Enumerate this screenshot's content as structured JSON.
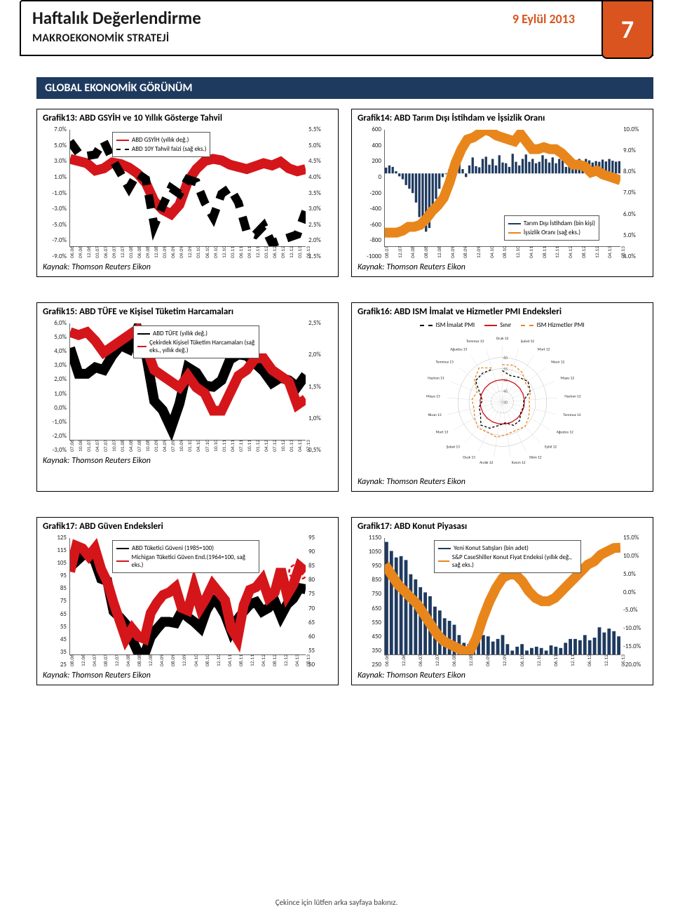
{
  "header": {
    "title": "Haftalık Değerlendirme",
    "subtitle": "MAKROEKONOMİK STRATEJİ",
    "date": "9 Eylül 2013",
    "page_number": "7"
  },
  "section_band": "GLOBAL EKONOMİK GÖRÜNÜM",
  "source_label": "Kaynak: Thomson Reuters Eikon",
  "footer": "Çekince için lütfen arka sayfaya bakınız.",
  "colors": {
    "accent": "#d9541e",
    "band": "#1f3a5f",
    "red": "#d4161a",
    "black": "#000000",
    "grid": "#666666",
    "orange_line": "#e8861b"
  },
  "chart13": {
    "title": "Grafik13: ABD GSYİH ve 10 Yıllık Gösterge Tahvil",
    "left_ticks": [
      "7.0%",
      "5.0%",
      "3.0%",
      "1.0%",
      "-1.0%",
      "-3.0%",
      "-5.0%",
      "-7.0%",
      "-9.0%"
    ],
    "right_ticks": [
      "5.5%",
      "5.0%",
      "4.5%",
      "4.0%",
      "3.5%",
      "3.0%",
      "2.5%",
      "2.0%",
      "1.5%"
    ],
    "x_ticks": [
      "06.06",
      "09.06",
      "12.06",
      "03.07",
      "06.07",
      "09.07",
      "12.07",
      "03.08",
      "06.08",
      "09.08",
      "12.08",
      "03.09",
      "06.09",
      "09.09",
      "12.09",
      "03.10",
      "06.10",
      "09.10",
      "12.10",
      "03.11",
      "06.11",
      "09.11",
      "12.11",
      "03.12",
      "06.12",
      "09.12",
      "12.12",
      "03.13",
      "06.13"
    ],
    "legend": [
      {
        "label": "ABD GSYİH (yıllık değ.)",
        "color": "#d4161a",
        "style": "solid"
      },
      {
        "label": "ABD 10Y Tahvil faizi (sağ eks.)",
        "color": "#000000",
        "style": "dashed"
      }
    ],
    "gdp_series": [
      3.0,
      2.7,
      2.4,
      1.4,
      1.7,
      2.5,
      2.3,
      1.8,
      1.0,
      -0.3,
      -2.8,
      -4.0,
      -4.6,
      -3.3,
      -0.1,
      1.6,
      2.7,
      3.0,
      2.8,
      2.2,
      1.9,
      1.6,
      2.0,
      2.4,
      2.1,
      2.6,
      1.7,
      1.3,
      1.6
    ],
    "gdp_domain": [
      -9,
      7
    ],
    "yield_series": [
      5.1,
      4.7,
      4.6,
      4.65,
      5.1,
      4.5,
      4.0,
      3.5,
      4.0,
      3.8,
      2.2,
      2.9,
      3.5,
      3.3,
      3.8,
      3.7,
      3.0,
      2.5,
      3.3,
      3.5,
      3.0,
      2.0,
      1.9,
      2.2,
      1.6,
      1.7,
      1.8,
      1.9,
      2.7
    ],
    "yield_domain": [
      1.5,
      5.5
    ]
  },
  "chart14": {
    "title": "Grafik14: ABD Tarım Dışı İstihdam ve İşsizlik Oranı",
    "left_ticks": [
      "600",
      "400",
      "200",
      "0",
      "-200",
      "-400",
      "-600",
      "-800",
      "-1000"
    ],
    "right_ticks": [
      "10.0%",
      "9.0%",
      "8.0%",
      "7.0%",
      "6.0%",
      "5.0%",
      "4.0%"
    ],
    "x_ticks": [
      "08.07",
      "12.07",
      "04.08",
      "08.08",
      "12.08",
      "04.09",
      "08.09",
      "12.09",
      "04.10",
      "08.10",
      "12.10",
      "04.11",
      "08.11",
      "12.11",
      "04.12",
      "08.12",
      "12.12",
      "04.13",
      "08.13"
    ],
    "legend": [
      {
        "label": "Tarım Dışı İstihdam (bin kişi)",
        "color": "#1f3a5f",
        "style": "solid"
      },
      {
        "label": "İşsizlik Oranı (sağ eks.)",
        "color": "#e8861b",
        "style": "solid"
      }
    ],
    "bars": [
      80,
      110,
      90,
      30,
      -40,
      -80,
      -160,
      -210,
      -270,
      -400,
      -600,
      -720,
      -800,
      -750,
      -600,
      -350,
      -210,
      -50,
      -10,
      60,
      150,
      220,
      290,
      60,
      -50,
      110,
      220,
      100,
      85,
      200,
      230,
      120,
      200,
      110,
      250,
      150,
      140,
      90,
      270,
      160,
      110,
      200,
      260,
      160,
      200,
      140,
      160,
      250,
      200,
      150,
      220,
      140,
      200,
      180,
      90,
      200,
      150,
      160,
      200,
      140,
      200,
      180,
      150,
      170,
      160,
      190,
      165,
      199,
      175,
      162,
      169
    ],
    "bars_domain": [
      -1000,
      600
    ],
    "unemp": [
      4.7,
      4.7,
      4.7,
      4.8,
      5.0,
      5.0,
      5.1,
      5.4,
      5.8,
      6.1,
      6.5,
      7.3,
      8.3,
      9.0,
      9.5,
      9.6,
      9.8,
      10.0,
      9.9,
      9.7,
      9.6,
      9.5,
      9.4,
      9.8,
      9.4,
      9.0,
      9.0,
      9.1,
      9.0,
      9.0,
      8.8,
      8.5,
      8.2,
      8.2,
      8.1,
      7.8,
      7.9,
      7.7,
      7.6,
      7.5,
      7.4
    ],
    "unemp_domain": [
      4.0,
      10.0
    ]
  },
  "chart15": {
    "title": "Grafik15: ABD TÜFE ve Kişisel Tüketim Harcamaları",
    "left_ticks": [
      "6,0%",
      "5,0%",
      "4,0%",
      "3,0%",
      "2,0%",
      "1,0%",
      "0,0%",
      "-1,0%",
      "-2,0%",
      "-3,0%"
    ],
    "right_ticks": [
      "2,5%",
      "2,0%",
      "1,5%",
      "1,0%",
      "0,5%"
    ],
    "x_ticks": [
      "07.06",
      "10.06",
      "01.07",
      "04.07",
      "07.07",
      "10.07",
      "01.08",
      "04.08",
      "07.08",
      "10.08",
      "01.09",
      "04.09",
      "07.09",
      "10.09",
      "01.10",
      "04.10",
      "07.10",
      "10.10",
      "01.11",
      "04.11",
      "07.11",
      "10.11",
      "01.12",
      "04.12",
      "07.12",
      "10.12",
      "01.13",
      "04.13",
      "07.13"
    ],
    "legend": [
      {
        "label": "ABD TÜFE (yıllık değ.)",
        "color": "#000000",
        "style": "solid"
      },
      {
        "label": "Çekirdek Kişisel Tüketim Harcamaları (sağ eks., yıllık değ.)",
        "color": "#d4161a",
        "style": "solid"
      }
    ],
    "cpi_series": [
      4.1,
      2.1,
      2.1,
      2.6,
      2.4,
      3.5,
      4.3,
      4.0,
      5.6,
      3.7,
      0.0,
      -0.7,
      -2.1,
      -0.2,
      2.6,
      2.2,
      1.2,
      1.1,
      1.6,
      3.2,
      3.6,
      3.5,
      2.9,
      2.3,
      1.4,
      1.8,
      1.6,
      1.1,
      2.0
    ],
    "cpi_domain": [
      -3,
      6
    ],
    "core_series": [
      2.35,
      2.3,
      2.35,
      2.2,
      2.0,
      2.1,
      2.2,
      2.3,
      2.4,
      2.1,
      1.7,
      1.6,
      1.5,
      1.4,
      1.6,
      1.4,
      1.3,
      1.0,
      1.0,
      1.3,
      1.6,
      1.7,
      1.9,
      1.9,
      1.7,
      1.6,
      1.5,
      1.1,
      1.2
    ],
    "core_domain": [
      0.5,
      2.5
    ]
  },
  "chart16": {
    "title": "Grafik16: ABD ISM İmalat ve Hizmetler PMI Endeksleri",
    "legend": [
      {
        "label": "ISM İmalat PMI",
        "color": "#000000",
        "style": "dashed"
      },
      {
        "label": "Sınır",
        "color": "#d4161a",
        "style": "solid"
      },
      {
        "label": "ISM Hizmetler PMI",
        "color": "#e8861b",
        "style": "dashed"
      }
    ],
    "months": [
      "Ocak 12",
      "Şubat 12",
      "Mart 12",
      "Nisan 12",
      "Mayıs 12",
      "Haziran 12",
      "Temmuz 12",
      "Ağustos 12",
      "Eylül 12",
      "Ekim 12",
      "Kasım 12",
      "Aralık 12",
      "Ocak 13",
      "Şubat 13",
      "Mart 13",
      "Nisan 13",
      "Mayıs 13",
      "Haziran 13",
      "Temmuz 13",
      "Ağustos 13",
      "Temmuz 13"
    ],
    "radial_ticks": [
      "60",
      "55",
      "50",
      "45",
      "40"
    ],
    "boundary": 50,
    "manufacturing": [
      54.1,
      52.4,
      53.4,
      54.8,
      53.5,
      49.7,
      49.8,
      49.6,
      51.5,
      51.7,
      49.5,
      50.7,
      53.1,
      54.2,
      51.3,
      50.7,
      49.0,
      50.9,
      55.4,
      55.7,
      55.4
    ],
    "services": [
      56.8,
      57.3,
      56.0,
      53.5,
      53.7,
      52.1,
      52.6,
      53.7,
      55.1,
      54.2,
      54.7,
      56.1,
      55.2,
      56.0,
      54.4,
      53.1,
      53.7,
      52.2,
      56.0,
      58.6,
      56.0
    ],
    "radial_domain": [
      40,
      65
    ]
  },
  "chart17": {
    "title": "Grafik17: ABD Güven Endeksleri",
    "left_ticks": [
      "125",
      "115",
      "105",
      "95",
      "85",
      "75",
      "65",
      "55",
      "45",
      "35",
      "25"
    ],
    "right_ticks": [
      "95",
      "90",
      "85",
      "80",
      "75",
      "70",
      "65",
      "60",
      "55",
      "50"
    ],
    "x_ticks": [
      "08.06",
      "12.06",
      "04.07",
      "08.07",
      "12.07",
      "04.08",
      "08.08",
      "12.08",
      "04.09",
      "08.09",
      "12.09",
      "04.10",
      "08.10",
      "12.10",
      "04.11",
      "08.11",
      "12.11",
      "04.12",
      "08.12",
      "12.12",
      "04.13",
      "08.13"
    ],
    "legend": [
      {
        "label": "ABD Tüketici Güveni  (1985=100)",
        "color": "#000000",
        "style": "solid"
      },
      {
        "label": "Michigan Tüketici Güven End.(1964=100, sağ eks.)",
        "color": "#d4161a",
        "style": "solid"
      }
    ],
    "conf_series": [
      100,
      105,
      110,
      111,
      105,
      90,
      88,
      62,
      57,
      51,
      38,
      26,
      25,
      40,
      47,
      53,
      53,
      52,
      62,
      57,
      53,
      48,
      63,
      72,
      68,
      59,
      45,
      55,
      62,
      68,
      70,
      62,
      65,
      71,
      58,
      68,
      73,
      82,
      81
    ],
    "conf_domain": [
      25,
      125
    ],
    "mich_series": [
      82,
      92,
      91,
      88,
      91,
      83,
      78,
      70,
      63,
      56,
      60,
      57,
      56,
      66,
      70,
      73,
      74,
      76,
      68,
      67,
      76,
      68,
      72,
      77,
      74,
      71,
      60,
      56,
      69,
      75,
      76,
      79,
      72,
      74,
      83,
      73,
      77,
      84,
      82
    ],
    "mich_domain": [
      50,
      95
    ]
  },
  "chart18": {
    "title": "Grafik17: ABD Konut Piyasası",
    "left_ticks": [
      "1150",
      "1050",
      "950",
      "850",
      "750",
      "650",
      "550",
      "450",
      "350",
      "250"
    ],
    "right_ticks": [
      "15.0%",
      "10.0%",
      "5.0%",
      "0.0%",
      "-5.0%",
      "-10.0%",
      "-15.0%",
      "-20.0%"
    ],
    "x_ticks": [
      "06.06",
      "12.06",
      "06.07",
      "12.07",
      "06.08",
      "12.08",
      "06.09",
      "12.09",
      "06.10",
      "12.10",
      "06.11",
      "12.11",
      "06.12",
      "12.12",
      "06.13"
    ],
    "legend": [
      {
        "label": "Yeni Konut Satışları (bin adet)",
        "color": "#1f3a5f",
        "style": "solid"
      },
      {
        "label": "S&P CaseShiller Konut Fiyat Endeksi (yıllık değ., sağ eks.)",
        "color": "#e8861b",
        "style": "solid"
      }
    ],
    "bars": [
      1120,
      1050,
      1000,
      1010,
      980,
      870,
      830,
      770,
      730,
      700,
      620,
      590,
      530,
      510,
      480,
      400,
      340,
      330,
      340,
      370,
      400,
      390,
      350,
      370,
      400,
      330,
      280,
      310,
      330,
      280,
      300,
      310,
      300,
      280,
      320,
      310,
      300,
      340,
      370,
      370,
      360,
      400,
      360,
      380,
      460,
      420,
      450,
      430,
      390
    ],
    "bars_domain": [
      250,
      1150
    ],
    "price_series": [
      7,
      4,
      1,
      -1,
      -3,
      -5,
      -8,
      -11,
      -14,
      -16,
      -17,
      -18,
      -19,
      -19,
      -15,
      -9,
      -4,
      0,
      3,
      4,
      4,
      2,
      -1,
      -3,
      -4,
      -4,
      -3,
      -1,
      1,
      3,
      5,
      7,
      8,
      10,
      11,
      12,
      12.1
    ],
    "price_domain": [
      -20,
      15
    ]
  }
}
